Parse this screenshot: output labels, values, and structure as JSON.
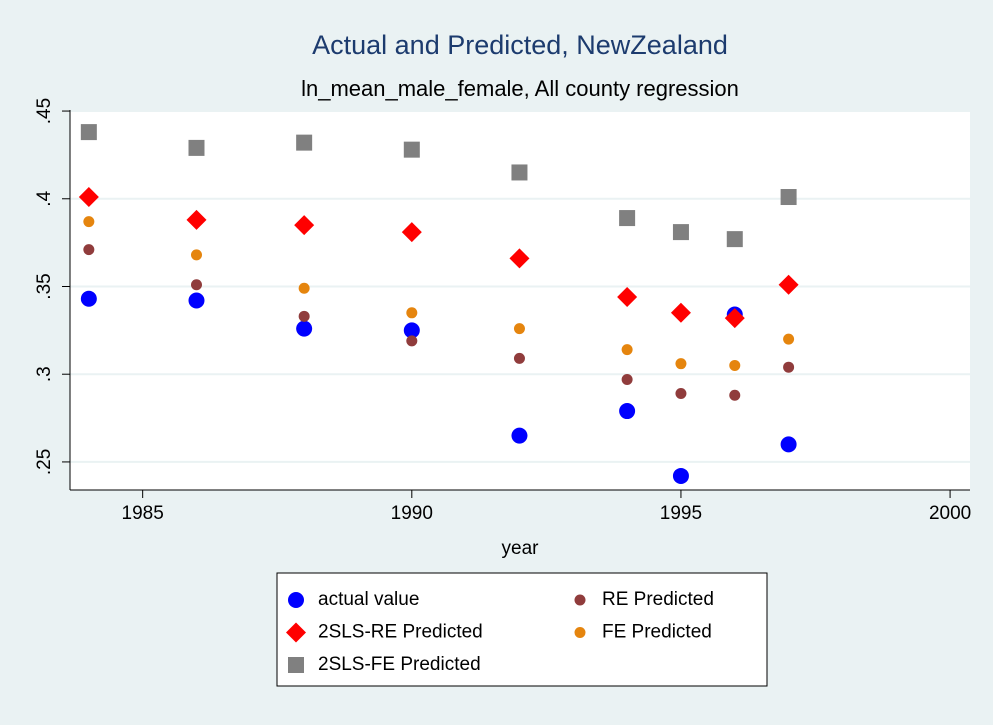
{
  "chart_data": {
    "type": "scatter",
    "title": "Actual and Predicted, NewZealand",
    "subtitle": "ln_mean_male_female, All county regression",
    "x_label": "year",
    "x": [
      1984,
      1986,
      1988,
      1990,
      1992,
      1994,
      1995,
      1996,
      1997
    ],
    "series": [
      {
        "name": "actual value",
        "color": "#0000ff",
        "marker": "large-circle",
        "values": [
          0.343,
          0.342,
          0.326,
          0.325,
          0.265,
          0.279,
          0.242,
          0.334,
          0.26
        ]
      },
      {
        "name": "RE Predicted",
        "color": "#903c3c",
        "marker": "small-circle",
        "values": [
          0.371,
          0.351,
          0.333,
          0.319,
          0.309,
          0.297,
          0.289,
          0.288,
          0.304
        ]
      },
      {
        "name": "2SLS-RE Predicted",
        "color": "#ff0000",
        "marker": "diamond",
        "values": [
          0.401,
          0.388,
          0.385,
          0.381,
          0.366,
          0.344,
          0.335,
          0.332,
          0.351
        ]
      },
      {
        "name": "FE Predicted",
        "color": "#e5850e",
        "marker": "small-circle",
        "values": [
          0.387,
          0.368,
          0.349,
          0.335,
          0.326,
          0.314,
          0.306,
          0.305,
          0.32
        ]
      },
      {
        "name": "2SLS-FE Predicted",
        "color": "#808080",
        "marker": "square",
        "values": [
          0.438,
          0.429,
          0.432,
          0.428,
          0.415,
          0.389,
          0.381,
          0.377,
          0.401
        ]
      }
    ],
    "xlim": [
      1983.65,
      2000.37
    ],
    "xticks": [
      1985,
      1990,
      1995,
      2000
    ],
    "ylim": [
      0.234,
      0.4506
    ],
    "yticks": [
      {
        "value": 0.25,
        "label": ".25"
      },
      {
        "value": 0.3,
        "label": ".3"
      },
      {
        "value": 0.35,
        "label": ".35"
      },
      {
        "value": 0.4,
        "label": ".4"
      },
      {
        "value": 0.45,
        "label": ".45"
      }
    ],
    "grid": true
  }
}
